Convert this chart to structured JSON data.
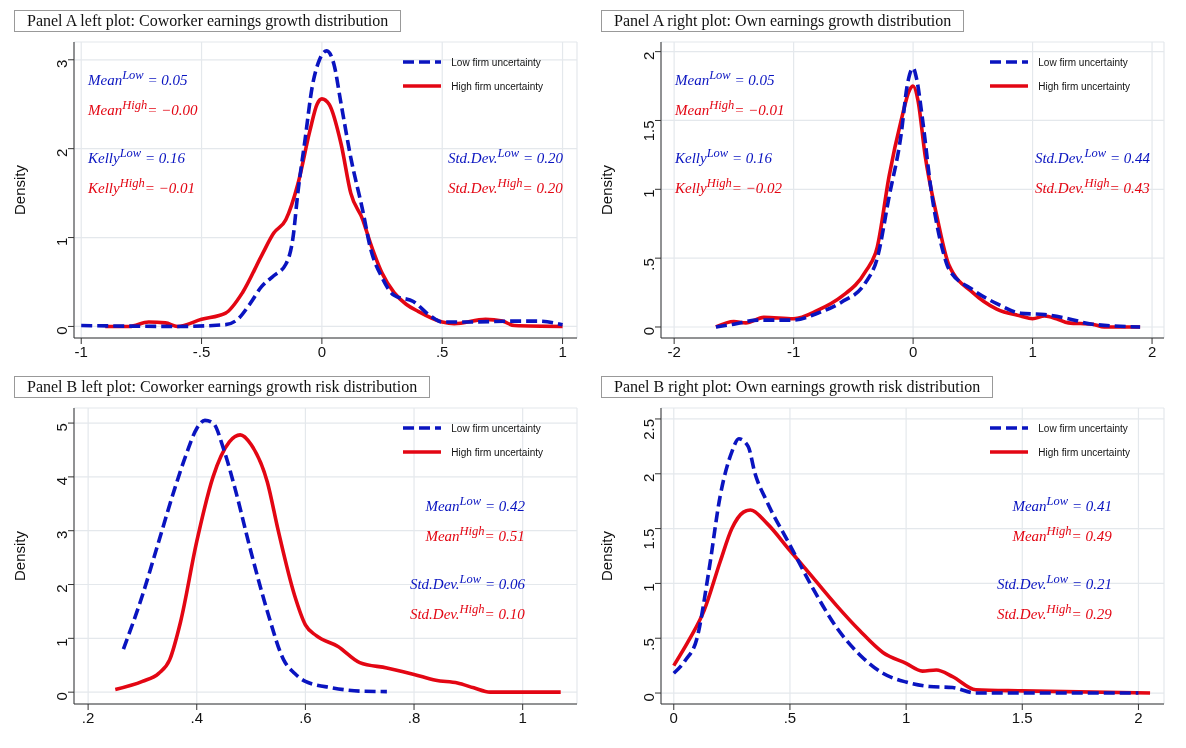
{
  "chart_data": [
    {
      "type": "line",
      "title": "Panel A left plot: Coworker earnings growth distribution",
      "ylabel": "Density",
      "legend": "top right",
      "grid": true,
      "xlim": [
        -1.03,
        1.06
      ],
      "xticks": [
        -1,
        {
          "value": -0.5,
          "label": "-.5"
        },
        0,
        {
          "value": 0.5,
          "label": ".5"
        },
        1
      ],
      "ylim": [
        -0.13,
        3.2
      ],
      "yticks": [
        0,
        1,
        2,
        3
      ],
      "series": [
        {
          "name": "Low firm uncertainty",
          "color": "#0a14c0",
          "line_style": "dashed",
          "x": [
            -1,
            -0.6,
            -0.4,
            -0.35,
            -0.3,
            -0.25,
            -0.2,
            -0.15,
            -0.12,
            -0.1,
            -0.07,
            -0.04,
            -0.01,
            0.02,
            0.05,
            0.08,
            0.12,
            0.17,
            0.2,
            0.25,
            0.3,
            0.38,
            0.45,
            0.5,
            0.6,
            0.8,
            0.9,
            1.0
          ],
          "values": [
            0.01,
            0,
            0.02,
            0.08,
            0.25,
            0.45,
            0.57,
            0.7,
            1.0,
            1.5,
            2.1,
            2.7,
            3.0,
            3.1,
            2.95,
            2.5,
            1.9,
            1.3,
            0.9,
            0.55,
            0.35,
            0.28,
            0.12,
            0.05,
            0.05,
            0.06,
            0.06,
            0.02
          ]
        },
        {
          "name": "High firm uncertainty",
          "color": "#e30613",
          "line_style": "solid",
          "x": [
            -0.9,
            -0.8,
            -0.72,
            -0.65,
            -0.6,
            -0.5,
            -0.4,
            -0.33,
            -0.25,
            -0.2,
            -0.15,
            -0.1,
            -0.05,
            -0.02,
            0,
            0.03,
            0.08,
            0.12,
            0.17,
            0.2,
            0.25,
            0.3,
            0.35,
            0.4,
            0.5,
            0.55,
            0.68,
            0.75,
            0.8,
            1.0
          ],
          "values": [
            0,
            0,
            0.05,
            0.04,
            0,
            0.08,
            0.15,
            0.38,
            0.8,
            1.05,
            1.2,
            1.6,
            2.2,
            2.5,
            2.56,
            2.5,
            2.05,
            1.5,
            1.2,
            0.95,
            0.6,
            0.38,
            0.25,
            0.17,
            0.05,
            0.03,
            0.08,
            0.06,
            0.01,
            0
          ]
        }
      ],
      "annotations": [
        "Mean$^{Low}$ = 0.05",
        "Mean$^{High}$= −0.00",
        "Kelly$^{Low}$ = 0.16",
        "Kelly$^{High}$= −0.01",
        "Std.Dev.$^{Low}$ = 0.20",
        "Std.Dev.$^{High}$= 0.20"
      ]
    },
    {
      "type": "line",
      "title": "Panel A right plot: Own earnings growth distribution",
      "ylabel": "Density",
      "legend": "top right",
      "grid": true,
      "xlim": [
        -2.11,
        2.1
      ],
      "xticks": [
        -2,
        -1,
        0,
        1,
        2
      ],
      "ylim": [
        -0.08,
        2.07
      ],
      "yticks": [
        0,
        {
          "value": 0.5,
          "label": ".5"
        },
        1,
        1.5,
        2
      ],
      "series": [
        {
          "name": "Low firm uncertainty",
          "color": "#0a14c0",
          "line_style": "dashed",
          "x": [
            -1.65,
            -1.5,
            -1.3,
            -1.0,
            -0.8,
            -0.6,
            -0.4,
            -0.3,
            -0.2,
            -0.1,
            -0.05,
            0,
            0.03,
            0.08,
            0.15,
            0.25,
            0.3,
            0.5,
            0.7,
            0.9,
            1.1,
            1.3,
            1.5,
            1.9
          ],
          "values": [
            0,
            0.02,
            0.05,
            0.05,
            0.1,
            0.18,
            0.32,
            0.5,
            0.95,
            1.4,
            1.75,
            1.88,
            1.8,
            1.5,
            1.0,
            0.55,
            0.42,
            0.27,
            0.17,
            0.1,
            0.09,
            0.06,
            0.02,
            0
          ]
        },
        {
          "name": "High firm uncertainty",
          "color": "#e30613",
          "line_style": "solid",
          "x": [
            -1.65,
            -1.5,
            -1.4,
            -1.25,
            -1.0,
            -0.8,
            -0.6,
            -0.4,
            -0.3,
            -0.2,
            -0.1,
            -0.03,
            0,
            0.04,
            0.1,
            0.2,
            0.3,
            0.5,
            0.7,
            0.9,
            1.0,
            1.1,
            1.2,
            1.3,
            1.5,
            1.6,
            1.9
          ],
          "values": [
            0,
            0.04,
            0.03,
            0.07,
            0.06,
            0.12,
            0.22,
            0.4,
            0.58,
            1.1,
            1.5,
            1.72,
            1.75,
            1.65,
            1.25,
            0.8,
            0.45,
            0.25,
            0.13,
            0.08,
            0.06,
            0.08,
            0.06,
            0.03,
            0.02,
            0,
            0
          ]
        }
      ],
      "annotations": [
        "Mean$^{Low}$ = 0.05",
        "Mean$^{High}$= −0.01",
        "Kelly$^{Low}$ = 0.16",
        "Kelly$^{High}$= −0.02",
        "Std.Dev.$^{Low}$ = 0.44",
        "Std.Dev.$^{High}$= 0.43"
      ]
    },
    {
      "type": "line",
      "title": "Panel B left plot: Coworker earnings growth risk distribution",
      "ylabel": "Density",
      "legend": "top right",
      "grid": true,
      "xlim": [
        0.174,
        1.1
      ],
      "xticks": [
        {
          "value": 0.2,
          "label": ".2"
        },
        {
          "value": 0.4,
          "label": ".4"
        },
        {
          "value": 0.6,
          "label": ".6"
        },
        {
          "value": 0.8,
          "label": ".8"
        },
        1
      ],
      "ylim": [
        -0.22,
        5.28
      ],
      "yticks": [
        0,
        1,
        2,
        3,
        4,
        5
      ],
      "series": [
        {
          "name": "Low firm uncertainty",
          "color": "#0a14c0",
          "line_style": "dashed",
          "x": [
            0.265,
            0.3,
            0.33,
            0.36,
            0.38,
            0.4,
            0.415,
            0.43,
            0.45,
            0.47,
            0.5,
            0.53,
            0.56,
            0.58,
            0.6,
            0.65,
            0.7,
            0.75
          ],
          "values": [
            0.8,
            1.8,
            2.8,
            3.8,
            4.4,
            4.9,
            5.05,
            5.0,
            4.5,
            3.8,
            2.6,
            1.5,
            0.6,
            0.35,
            0.2,
            0.08,
            0.02,
            0.01
          ]
        },
        {
          "name": "High firm uncertainty",
          "color": "#e30613",
          "line_style": "solid",
          "x": [
            0.25,
            0.3,
            0.33,
            0.35,
            0.37,
            0.4,
            0.43,
            0.46,
            0.48,
            0.5,
            0.53,
            0.55,
            0.58,
            0.6,
            0.62,
            0.66,
            0.7,
            0.75,
            0.78,
            0.8,
            0.84,
            0.88,
            0.91,
            0.94,
            1.07
          ],
          "values": [
            0.05,
            0.2,
            0.35,
            0.6,
            1.3,
            2.8,
            4.0,
            4.65,
            4.78,
            4.6,
            3.9,
            3.0,
            1.8,
            1.25,
            1.05,
            0.85,
            0.55,
            0.45,
            0.38,
            0.33,
            0.22,
            0.17,
            0.08,
            0,
            0
          ]
        }
      ],
      "annotations": [
        "Mean$^{Low}$ = 0.42",
        "Mean$^{High}$= 0.51",
        "Std.Dev.$^{Low}$ = 0.06",
        "Std.Dev.$^{High}$= 0.10"
      ]
    },
    {
      "type": "line",
      "title": "Panel B right plot: Own earnings growth risk distribution",
      "ylabel": "Density",
      "legend": "top right",
      "grid": true,
      "xlim": [
        -0.055,
        2.11
      ],
      "xticks": [
        0,
        {
          "value": 0.5,
          "label": ".5"
        },
        1,
        1.5,
        2
      ],
      "ylim": [
        -0.1,
        2.6
      ],
      "yticks": [
        0,
        {
          "value": 0.5,
          "label": ".5"
        },
        1,
        1.5,
        2,
        2.5
      ],
      "series": [
        {
          "name": "Low firm uncertainty",
          "color": "#0a14c0",
          "line_style": "dashed",
          "x": [
            0,
            0.05,
            0.1,
            0.15,
            0.2,
            0.25,
            0.28,
            0.32,
            0.35,
            0.4,
            0.5,
            0.6,
            0.7,
            0.8,
            0.9,
            1.0,
            1.1,
            1.2,
            1.3,
            1.5,
            2.0
          ],
          "values": [
            0.18,
            0.3,
            0.5,
            1.1,
            1.8,
            2.2,
            2.32,
            2.25,
            2.0,
            1.75,
            1.35,
            0.95,
            0.6,
            0.35,
            0.18,
            0.1,
            0.06,
            0.05,
            0,
            0,
            0
          ]
        },
        {
          "name": "High firm uncertainty",
          "color": "#e30613",
          "line_style": "solid",
          "x": [
            0,
            0.07,
            0.13,
            0.2,
            0.25,
            0.3,
            0.33,
            0.4,
            0.5,
            0.6,
            0.7,
            0.8,
            0.9,
            1.0,
            1.07,
            1.13,
            1.2,
            1.3,
            1.5,
            2.05
          ],
          "values": [
            0.25,
            0.5,
            0.75,
            1.2,
            1.5,
            1.65,
            1.67,
            1.55,
            1.3,
            1.05,
            0.8,
            0.57,
            0.37,
            0.27,
            0.2,
            0.21,
            0.15,
            0.03,
            0.02,
            0
          ]
        }
      ],
      "annotations": [
        "Mean$^{Low}$ = 0.41",
        "Mean$^{High}$= 0.49",
        "Std.Dev.$^{Low}$ = 0.21",
        "Std.Dev.$^{High}$= 0.29"
      ]
    }
  ]
}
